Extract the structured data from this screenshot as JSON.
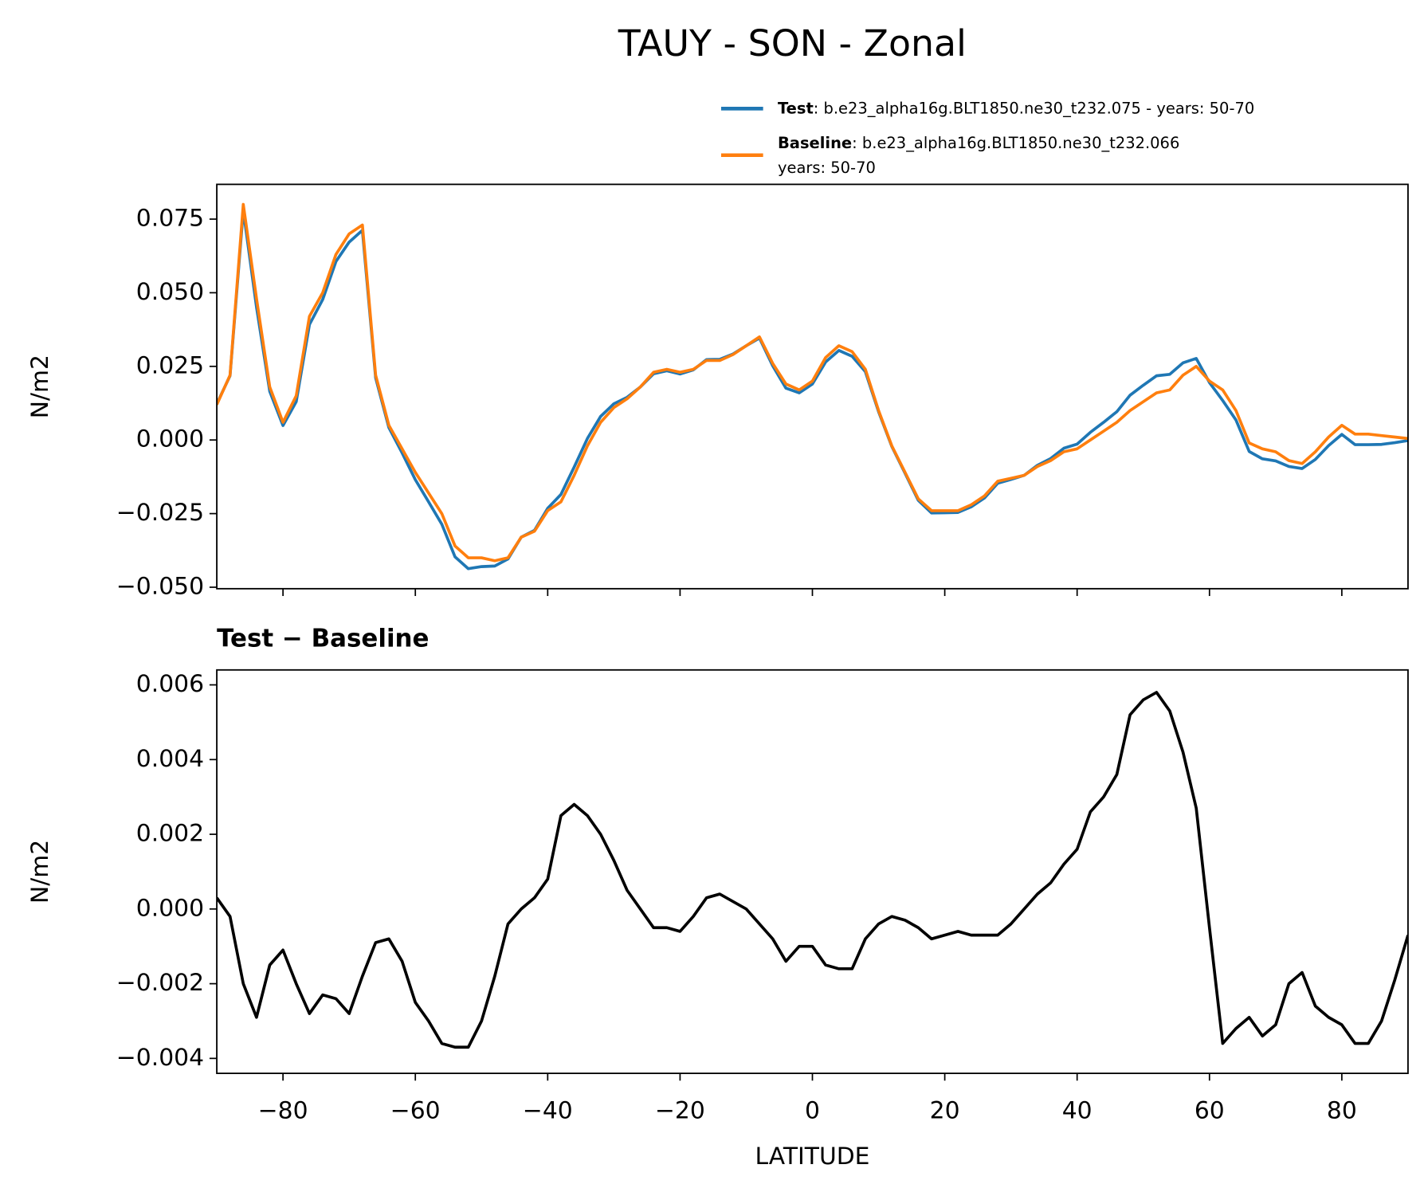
{
  "chart_data": [
    {
      "type": "line",
      "title": "TAUY - SON - Zonal",
      "ylabel": "N/m2",
      "x": [
        -90,
        -88,
        -86,
        -84,
        -82,
        -80,
        -78,
        -76,
        -74,
        -72,
        -70,
        -68,
        -66,
        -64,
        -62,
        -60,
        -58,
        -56,
        -54,
        -52,
        -50,
        -48,
        -46,
        -44,
        -42,
        -40,
        -38,
        -36,
        -34,
        -32,
        -30,
        -28,
        -26,
        -24,
        -22,
        -20,
        -18,
        -16,
        -14,
        -12,
        -10,
        -8,
        -6,
        -4,
        -2,
        0,
        2,
        4,
        6,
        8,
        10,
        12,
        14,
        16,
        18,
        20,
        22,
        24,
        26,
        28,
        30,
        32,
        34,
        36,
        38,
        40,
        42,
        44,
        46,
        48,
        50,
        52,
        54,
        56,
        58,
        60,
        62,
        64,
        66,
        68,
        70,
        72,
        74,
        76,
        78,
        80,
        82,
        84,
        86,
        88,
        90
      ],
      "series": [
        {
          "name": "Test",
          "label": ": b.e23_alpha16g.BLT1850.ne30_t232.075 - years: 50-70",
          "color": "#1f77b4",
          "values": [
            0.0123,
            0.0218,
            0.078,
            0.0451,
            0.0165,
            0.0049,
            0.013,
            0.0392,
            0.0477,
            0.0606,
            0.0672,
            0.0712,
            0.0211,
            0.0042,
            -0.0044,
            -0.0135,
            -0.021,
            -0.0286,
            -0.0397,
            -0.0437,
            -0.043,
            -0.0428,
            -0.0404,
            -0.033,
            -0.0307,
            -0.0232,
            -0.0185,
            -0.0092,
            0.0005,
            0.008,
            0.0123,
            0.0145,
            0.018,
            0.0225,
            0.0235,
            0.0224,
            0.0238,
            0.0273,
            0.0274,
            0.0292,
            0.032,
            0.0346,
            0.0252,
            0.0176,
            0.016,
            0.019,
            0.0265,
            0.0304,
            0.0284,
            0.0232,
            0.0096,
            -0.0022,
            -0.0113,
            -0.0205,
            -0.0248,
            -0.0247,
            -0.0246,
            -0.0227,
            -0.0197,
            -0.0147,
            -0.0134,
            -0.012,
            -0.0086,
            -0.0063,
            -0.0028,
            -0.0014,
            0.0026,
            0.006,
            0.0096,
            0.0152,
            0.0186,
            0.0218,
            0.0223,
            0.0262,
            0.0277,
            0.0195,
            0.0134,
            0.0068,
            -0.0039,
            -0.0064,
            -0.0071,
            -0.009,
            -0.0097,
            -0.0066,
            -0.0019,
            0.0019,
            -0.0016,
            -0.0016,
            -0.0015,
            -0.0009,
            -0.0002
          ]
        },
        {
          "name": "Baseline",
          "label": [
            ": b.e23_alpha16g.BLT1850.ne30_t232.066",
            "years: 50-70"
          ],
          "color": "#ff7f0e",
          "values": [
            0.012,
            0.022,
            0.08,
            0.048,
            0.018,
            0.006,
            0.015,
            0.042,
            0.05,
            0.063,
            0.07,
            0.073,
            0.022,
            0.005,
            -0.003,
            -0.011,
            -0.018,
            -0.025,
            -0.036,
            -0.04,
            -0.04,
            -0.041,
            -0.04,
            -0.033,
            -0.031,
            -0.024,
            -0.021,
            -0.012,
            -0.002,
            0.006,
            0.011,
            0.014,
            0.018,
            0.023,
            0.024,
            0.023,
            0.024,
            0.027,
            0.027,
            0.029,
            0.032,
            0.035,
            0.026,
            0.019,
            0.017,
            0.02,
            0.028,
            0.032,
            0.03,
            0.024,
            0.01,
            -0.002,
            -0.011,
            -0.02,
            -0.024,
            -0.024,
            -0.024,
            -0.022,
            -0.019,
            -0.014,
            -0.013,
            -0.012,
            -0.009,
            -0.007,
            -0.004,
            -0.003,
            0.0,
            0.003,
            0.006,
            0.01,
            0.013,
            0.016,
            0.017,
            0.022,
            0.025,
            0.02,
            0.017,
            0.01,
            -0.001,
            -0.003,
            -0.004,
            -0.007,
            -0.008,
            -0.004,
            0.001,
            0.005,
            0.002,
            0.002,
            0.0015,
            0.001,
            0.0005
          ]
        }
      ],
      "xlim": [
        -90,
        90
      ],
      "xticks": [
        -80,
        -60,
        -40,
        -20,
        0,
        20,
        40,
        60,
        80
      ],
      "show_xtick_labels": false,
      "ylim": [
        -0.0505,
        0.0868
      ],
      "yticks": [
        {
          "value": -0.05,
          "label": "−0.050"
        },
        {
          "value": -0.025,
          "label": "−0.025"
        },
        {
          "value": 0,
          "label": "0.000"
        },
        {
          "value": 0.025,
          "label": "0.025"
        },
        {
          "value": 0.05,
          "label": "0.050"
        },
        {
          "value": 0.075,
          "label": "0.075"
        }
      ],
      "grid": false,
      "legend": true
    },
    {
      "type": "line",
      "title": "Test − Baseline",
      "ylabel": "N/m2",
      "xlabel": "LATITUDE",
      "x": [
        -90,
        -88,
        -86,
        -84,
        -82,
        -80,
        -78,
        -76,
        -74,
        -72,
        -70,
        -68,
        -66,
        -64,
        -62,
        -60,
        -58,
        -56,
        -54,
        -52,
        -50,
        -48,
        -46,
        -44,
        -42,
        -40,
        -38,
        -36,
        -34,
        -32,
        -30,
        -28,
        -26,
        -24,
        -22,
        -20,
        -18,
        -16,
        -14,
        -12,
        -10,
        -8,
        -6,
        -4,
        -2,
        0,
        2,
        4,
        6,
        8,
        10,
        12,
        14,
        16,
        18,
        20,
        22,
        24,
        26,
        28,
        30,
        32,
        34,
        36,
        38,
        40,
        42,
        44,
        46,
        48,
        50,
        52,
        54,
        56,
        58,
        60,
        62,
        64,
        66,
        68,
        70,
        72,
        74,
        76,
        78,
        80,
        82,
        84,
        86,
        88,
        90
      ],
      "series": [
        {
          "color": "#000000",
          "values": [
            0.0003,
            -0.0002,
            -0.002,
            -0.0029,
            -0.0015,
            -0.0011,
            -0.002,
            -0.0028,
            -0.0023,
            -0.0024,
            -0.0028,
            -0.0018,
            -0.0009,
            -0.0008,
            -0.0014,
            -0.0025,
            -0.003,
            -0.0036,
            -0.0037,
            -0.0037,
            -0.003,
            -0.0018,
            -0.0004,
            0.0,
            0.0003,
            0.0008,
            0.0025,
            0.0028,
            0.0025,
            0.002,
            0.0013,
            0.0005,
            0.0,
            -0.0005,
            -0.0005,
            -0.0006,
            -0.0002,
            0.0003,
            0.0004,
            0.0002,
            0.0,
            -0.0004,
            -0.0008,
            -0.0014,
            -0.001,
            -0.001,
            -0.0015,
            -0.0016,
            -0.0016,
            -0.0008,
            -0.0004,
            -0.0002,
            -0.0003,
            -0.0005,
            -0.0008,
            -0.0007,
            -0.0006,
            -0.0007,
            -0.0007,
            -0.0007,
            -0.0004,
            0.0,
            0.0004,
            0.0007,
            0.0012,
            0.0016,
            0.0026,
            0.003,
            0.0036,
            0.0052,
            0.0056,
            0.0058,
            0.0053,
            0.0042,
            0.0027,
            -0.0005,
            -0.0036,
            -0.0032,
            -0.0029,
            -0.0034,
            -0.0031,
            -0.002,
            -0.0017,
            -0.0026,
            -0.0029,
            -0.0031,
            -0.0036,
            -0.0036,
            -0.003,
            -0.0019,
            -0.0007
          ]
        }
      ],
      "xlim": [
        -90,
        90
      ],
      "xticks": [
        {
          "value": -80,
          "label": "−80"
        },
        {
          "value": -60,
          "label": "−60"
        },
        {
          "value": -40,
          "label": "−40"
        },
        {
          "value": -20,
          "label": "−20"
        },
        0,
        20,
        40,
        60,
        80
      ],
      "ylim": [
        -0.0044,
        0.0064
      ],
      "yticks": [
        {
          "value": -0.004,
          "label": "−0.004"
        },
        {
          "value": -0.002,
          "label": "−0.002"
        },
        {
          "value": 0,
          "label": "0.000"
        },
        {
          "value": 0.002,
          "label": "0.002"
        },
        {
          "value": 0.004,
          "label": "0.004"
        },
        {
          "value": 0.006,
          "label": "0.006"
        }
      ],
      "grid": false
    }
  ]
}
